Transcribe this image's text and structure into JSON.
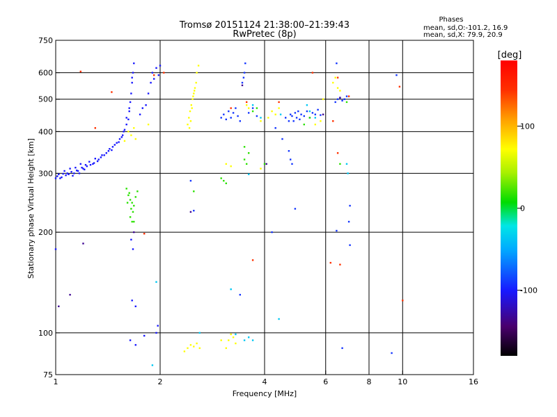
{
  "chart_data": {
    "type": "scatter",
    "title": "Tromsø 20151124 21:38:00–21:39:43",
    "subtitle": "RwPretec (8p)",
    "xlabel": "Frequency [MHz]",
    "ylabel": "Stationary phase Virtual Height [km]",
    "x_scale": "log",
    "y_scale": "log",
    "xlim": [
      1,
      16
    ],
    "ylim": [
      75,
      750
    ],
    "x_ticks": [
      1,
      2,
      4,
      6,
      8,
      10,
      16
    ],
    "x_tick_labels": [
      "1",
      "2",
      "4",
      "6",
      "8",
      "10",
      "16"
    ],
    "x_grid": [
      2,
      4,
      6,
      8,
      10
    ],
    "y_ticks": [
      75,
      100,
      200,
      300,
      400,
      500,
      600,
      750
    ],
    "y_tick_labels": [
      "75",
      "100",
      "200",
      "300",
      "400",
      "500",
      "600",
      "750"
    ],
    "y_grid": [
      100,
      200,
      300,
      400,
      500,
      600
    ],
    "grid": true,
    "colorbar": {
      "label": "[deg]",
      "range": [
        -180,
        180
      ],
      "ticks": [
        100,
        0,
        -100
      ],
      "tick_labels": [
        "100",
        "0",
        "-100"
      ]
    },
    "stats": {
      "heading": "Phases",
      "line_o": "mean, sd,O:-101.2, 16.9",
      "line_x": "mean, sd,X:  79.9, 20.9"
    },
    "series": [
      {
        "phase": -110,
        "points": [
          [
            1.0,
            290
          ],
          [
            1.02,
            298
          ],
          [
            1.04,
            292
          ],
          [
            1.06,
            305
          ],
          [
            1.08,
            300
          ],
          [
            1.1,
            310
          ],
          [
            1.12,
            295
          ],
          [
            1.14,
            312
          ],
          [
            1.16,
            305
          ],
          [
            1.18,
            320
          ],
          [
            1.2,
            310
          ],
          [
            1.22,
            318
          ],
          [
            1.25,
            325
          ],
          [
            1.28,
            320
          ],
          [
            1.3,
            332
          ],
          [
            1.33,
            330
          ],
          [
            1.36,
            340
          ],
          [
            1.4,
            345
          ],
          [
            1.43,
            355
          ],
          [
            1.46,
            360
          ],
          [
            1.5,
            370
          ],
          [
            1.53,
            380
          ],
          [
            1.56,
            390
          ],
          [
            1.58,
            405
          ],
          [
            1.6,
            420
          ],
          [
            1.62,
            435
          ],
          [
            1.63,
            460
          ],
          [
            1.64,
            490
          ],
          [
            1.65,
            520
          ],
          [
            1.66,
            560
          ],
          [
            1.67,
            600
          ],
          [
            1.68,
            640
          ],
          [
            1.66,
            580
          ],
          [
            1.63,
            470
          ],
          [
            1.6,
            440
          ],
          [
            1.57,
            400
          ],
          [
            1.55,
            385
          ],
          [
            1.52,
            372
          ],
          [
            1.48,
            365
          ],
          [
            1.45,
            352
          ],
          [
            1.42,
            350
          ],
          [
            1.38,
            340
          ],
          [
            1.35,
            335
          ],
          [
            1.32,
            326
          ],
          [
            1.29,
            322
          ],
          [
            1.26,
            318
          ],
          [
            1.23,
            315
          ],
          [
            1.21,
            308
          ],
          [
            1.19,
            312
          ],
          [
            1.17,
            300
          ],
          [
            1.15,
            306
          ],
          [
            1.13,
            300
          ],
          [
            1.11,
            303
          ],
          [
            1.09,
            298
          ],
          [
            1.07,
            296
          ],
          [
            1.05,
            299
          ],
          [
            1.03,
            290
          ],
          [
            1.01,
            294
          ],
          [
            1.85,
            520
          ],
          [
            1.88,
            560
          ],
          [
            1.9,
            600
          ],
          [
            1.92,
            575
          ],
          [
            1.95,
            620
          ],
          [
            1.98,
            590
          ],
          [
            2.0,
            630
          ],
          [
            1.82,
            480
          ],
          [
            1.78,
            470
          ],
          [
            1.75,
            450
          ],
          [
            1.0,
            178
          ],
          [
            1.65,
            190
          ],
          [
            1.67,
            178
          ],
          [
            1.66,
            125
          ],
          [
            1.7,
            120
          ],
          [
            1.64,
            95
          ],
          [
            1.7,
            92
          ],
          [
            1.8,
            98
          ],
          [
            1.95,
            100
          ],
          [
            1.97,
            105
          ]
        ]
      },
      {
        "phase": -100,
        "points": [
          [
            3.0,
            440
          ],
          [
            3.05,
            450
          ],
          [
            3.1,
            435
          ],
          [
            3.15,
            460
          ],
          [
            3.2,
            440
          ],
          [
            3.25,
            455
          ],
          [
            3.3,
            470
          ],
          [
            3.35,
            445
          ],
          [
            3.4,
            430
          ],
          [
            3.45,
            560
          ],
          [
            3.5,
            600
          ],
          [
            3.52,
            640
          ],
          [
            3.48,
            580
          ],
          [
            3.6,
            455
          ],
          [
            3.7,
            470
          ],
          [
            3.8,
            445
          ],
          [
            4.6,
            440
          ],
          [
            4.7,
            430
          ],
          [
            4.75,
            450
          ],
          [
            4.8,
            445
          ],
          [
            4.85,
            430
          ],
          [
            4.9,
            455
          ],
          [
            4.95,
            440
          ],
          [
            5.0,
            460
          ],
          [
            5.05,
            435
          ],
          [
            5.1,
            450
          ],
          [
            5.2,
            445
          ],
          [
            5.3,
            460
          ],
          [
            5.4,
            440
          ],
          [
            5.5,
            455
          ],
          [
            5.6,
            450
          ],
          [
            5.7,
            465
          ],
          [
            5.8,
            448
          ],
          [
            4.7,
            350
          ],
          [
            4.75,
            330
          ],
          [
            4.8,
            320
          ],
          [
            4.5,
            380
          ],
          [
            4.3,
            410
          ],
          [
            6.4,
            490
          ],
          [
            6.5,
            500
          ],
          [
            6.6,
            505
          ],
          [
            6.7,
            495
          ],
          [
            6.8,
            500
          ],
          [
            6.9,
            510
          ],
          [
            6.45,
            640
          ],
          [
            6.8,
            500
          ],
          [
            4.2,
            200
          ],
          [
            4.9,
            235
          ],
          [
            7.0,
            215
          ],
          [
            7.05,
            240
          ],
          [
            6.45,
            202
          ],
          [
            7.05,
            183
          ],
          [
            2.45,
            285
          ],
          [
            2.5,
            232
          ],
          [
            3.4,
            130
          ],
          [
            6.7,
            90
          ],
          [
            9.3,
            87
          ],
          [
            9.6,
            590
          ]
        ]
      },
      {
        "phase": 90,
        "points": [
          [
            2.4,
            420
          ],
          [
            2.42,
            440
          ],
          [
            2.44,
            460
          ],
          [
            2.46,
            480
          ],
          [
            2.48,
            500
          ],
          [
            2.5,
            520
          ],
          [
            2.52,
            540
          ],
          [
            2.54,
            560
          ],
          [
            2.45,
            430
          ],
          [
            2.47,
            470
          ],
          [
            2.49,
            510
          ],
          [
            2.51,
            530
          ],
          [
            2.43,
            410
          ],
          [
            2.55,
            600
          ],
          [
            2.58,
            630
          ],
          [
            1.62,
            400
          ],
          [
            1.65,
            390
          ],
          [
            1.68,
            410
          ],
          [
            1.7,
            380
          ],
          [
            1.58,
            375
          ],
          [
            3.55,
            480
          ],
          [
            3.6,
            470
          ],
          [
            3.9,
            430
          ],
          [
            4.1,
            440
          ],
          [
            4.2,
            460
          ],
          [
            4.3,
            450
          ],
          [
            4.4,
            470
          ],
          [
            5.6,
            420
          ],
          [
            5.8,
            430
          ],
          [
            5.9,
            500
          ],
          [
            6.3,
            560
          ],
          [
            6.4,
            580
          ],
          [
            6.5,
            540
          ],
          [
            6.6,
            530
          ],
          [
            3.1,
            90
          ],
          [
            3.15,
            95
          ],
          [
            3.2,
            99
          ],
          [
            3.25,
            97
          ],
          [
            3.3,
            93
          ],
          [
            3.0,
            95
          ],
          [
            2.4,
            90
          ],
          [
            2.45,
            92
          ],
          [
            2.5,
            91
          ],
          [
            2.55,
            93
          ],
          [
            2.6,
            90
          ],
          [
            2.35,
            88
          ],
          [
            3.1,
            320
          ],
          [
            3.2,
            315
          ],
          [
            3.9,
            310
          ],
          [
            1.85,
            420
          ]
        ]
      },
      {
        "phase": 20,
        "points": [
          [
            1.6,
            270
          ],
          [
            1.62,
            258
          ],
          [
            1.63,
            262
          ],
          [
            1.64,
            250
          ],
          [
            1.66,
            245
          ],
          [
            1.65,
            235
          ],
          [
            1.67,
            230
          ],
          [
            1.64,
            222
          ],
          [
            1.66,
            215
          ],
          [
            1.68,
            240
          ],
          [
            1.7,
            255
          ],
          [
            1.72,
            265
          ],
          [
            1.61,
            245
          ],
          [
            3.0,
            290
          ],
          [
            3.05,
            285
          ],
          [
            3.1,
            280
          ],
          [
            3.5,
            330
          ],
          [
            3.55,
            320
          ],
          [
            3.6,
            345
          ],
          [
            3.5,
            360
          ],
          [
            3.7,
            460
          ],
          [
            3.8,
            470
          ],
          [
            4.0,
            320
          ],
          [
            5.2,
            420
          ],
          [
            5.4,
            440
          ],
          [
            6.6,
            320
          ],
          [
            6.9,
            490
          ],
          [
            1.68,
            215
          ],
          [
            2.5,
            265
          ]
        ]
      },
      {
        "phase": -40,
        "points": [
          [
            3.5,
            95
          ],
          [
            3.6,
            97
          ],
          [
            3.7,
            95
          ],
          [
            3.3,
            99
          ],
          [
            4.4,
            110
          ],
          [
            4.45,
            450
          ],
          [
            5.3,
            480
          ],
          [
            3.7,
            480
          ],
          [
            3.9,
            440
          ],
          [
            6.9,
            320
          ],
          [
            6.95,
            300
          ],
          [
            1.9,
            80
          ],
          [
            3.2,
            135
          ],
          [
            2.6,
            100
          ],
          [
            5.4,
            460
          ],
          [
            5.6,
            440
          ],
          [
            3.6,
            298
          ],
          [
            1.95,
            142
          ]
        ]
      },
      {
        "phase": 160,
        "points": [
          [
            1.18,
            605
          ],
          [
            1.3,
            410
          ],
          [
            1.45,
            525
          ],
          [
            1.92,
            590
          ],
          [
            2.05,
            600
          ],
          [
            3.2,
            470
          ],
          [
            3.55,
            490
          ],
          [
            4.4,
            490
          ],
          [
            5.5,
            600
          ],
          [
            6.3,
            430
          ],
          [
            6.5,
            580
          ],
          [
            7.0,
            510
          ],
          [
            9.8,
            545
          ],
          [
            10.0,
            125
          ],
          [
            6.2,
            162
          ],
          [
            6.6,
            160
          ],
          [
            3.7,
            165
          ],
          [
            1.8,
            198
          ],
          [
            6.5,
            345
          ]
        ]
      },
      {
        "phase": -140,
        "points": [
          [
            1.2,
            185
          ],
          [
            1.68,
            200
          ],
          [
            1.1,
            130
          ],
          [
            1.02,
            120
          ],
          [
            2.45,
            230
          ],
          [
            3.45,
            550
          ],
          [
            4.05,
            320
          ],
          [
            5.9,
            450
          ],
          [
            6.6,
            505
          ]
        ]
      }
    ]
  }
}
